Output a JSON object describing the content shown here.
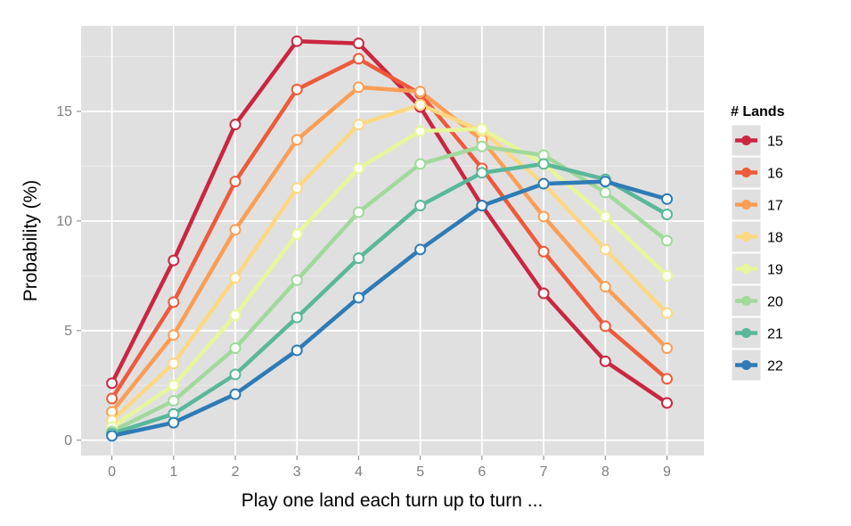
{
  "chart_data": {
    "type": "line",
    "title": "",
    "xlabel": "Play one land each turn up to turn ...",
    "ylabel": "Probability (%)",
    "xlim": [
      -0.5,
      9.6
    ],
    "ylim": [
      -0.7,
      18.9
    ],
    "x": [
      0,
      1,
      2,
      3,
      4,
      5,
      6,
      7,
      8,
      9
    ],
    "x_ticks": [
      0,
      1,
      2,
      3,
      4,
      5,
      6,
      7,
      8,
      9
    ],
    "y_ticks": [
      0,
      5,
      10,
      15
    ],
    "grid": true,
    "legend_title": "# Lands",
    "legend_position": "right",
    "series": [
      {
        "name": "15",
        "color": "#cb2641",
        "values": [
          2.6,
          8.2,
          14.4,
          18.2,
          18.1,
          15.2,
          10.7,
          6.7,
          3.6,
          1.7
        ]
      },
      {
        "name": "16",
        "color": "#ee5a3b",
        "values": [
          1.9,
          6.3,
          11.8,
          16.0,
          17.4,
          15.8,
          12.4,
          8.6,
          5.2,
          2.8
        ]
      },
      {
        "name": "17",
        "color": "#fb9e55",
        "values": [
          1.3,
          4.8,
          9.6,
          13.7,
          16.1,
          15.9,
          13.7,
          10.2,
          7.0,
          4.2
        ]
      },
      {
        "name": "18",
        "color": "#fdd882",
        "values": [
          0.9,
          3.5,
          7.4,
          11.5,
          14.4,
          15.3,
          14.1,
          11.7,
          8.7,
          5.8
        ]
      },
      {
        "name": "19",
        "color": "#e8f69b",
        "values": [
          0.6,
          2.5,
          5.7,
          9.4,
          12.4,
          14.1,
          14.2,
          12.6,
          10.2,
          7.5
        ]
      },
      {
        "name": "20",
        "color": "#a1d99b",
        "values": [
          0.4,
          1.8,
          4.2,
          7.3,
          10.4,
          12.6,
          13.4,
          13.0,
          11.3,
          9.1
        ]
      },
      {
        "name": "21",
        "color": "#5ab79a",
        "values": [
          0.3,
          1.2,
          3.0,
          5.6,
          8.3,
          10.7,
          12.2,
          12.6,
          11.9,
          10.3
        ]
      },
      {
        "name": "22",
        "color": "#2e7bb6",
        "values": [
          0.2,
          0.8,
          2.1,
          4.1,
          6.5,
          8.7,
          10.7,
          11.7,
          11.8,
          11.0
        ]
      }
    ]
  },
  "colors": {
    "panel_bg": "#e0e0e0",
    "grid_major": "#ffffff",
    "tick_text": "#7f7f7f",
    "legend_key_bg": "#e0e0e0"
  }
}
